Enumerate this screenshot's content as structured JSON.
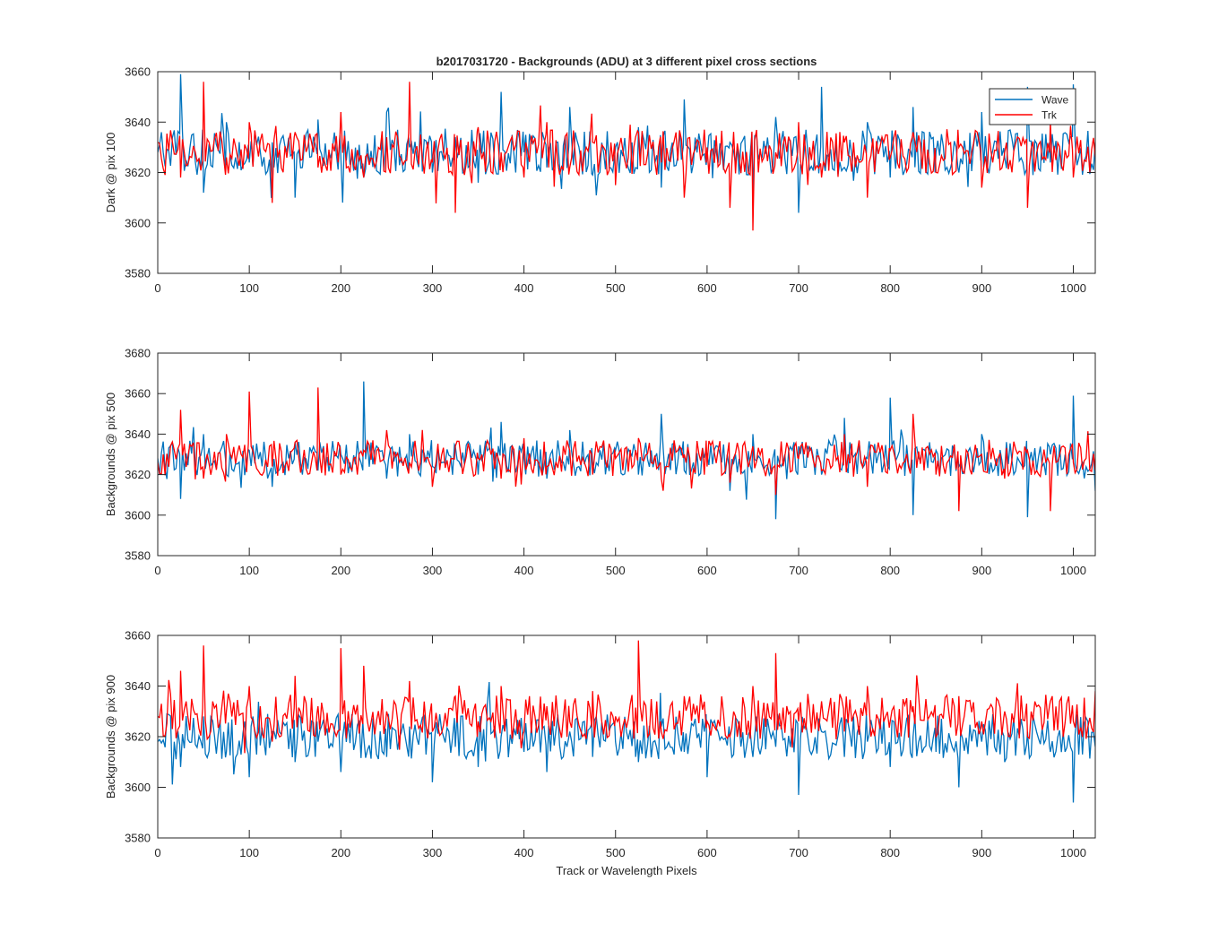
{
  "figure": {
    "title": "b2017031720 - Backgrounds (ADU) at 3 different pixel cross sections",
    "xlabel": "Track or Wavelength Pixels"
  },
  "legend": {
    "placement": "top-right",
    "entries": [
      {
        "label": "Wave",
        "color": "#0072BD"
      },
      {
        "label": "Trk",
        "color": "#FF0000"
      }
    ]
  },
  "chart_data": [
    {
      "type": "line",
      "ylabel": "Dark @ pix 100",
      "xlim": [
        0,
        1024
      ],
      "ylim": [
        3580,
        3660
      ],
      "xticks": [
        0,
        100,
        200,
        300,
        400,
        500,
        600,
        700,
        800,
        900,
        1000
      ],
      "yticks": [
        3580,
        3600,
        3620,
        3640,
        3660
      ],
      "series": [
        {
          "name": "Wave",
          "color": "#0072BD",
          "x": [
            0,
            25,
            50,
            75,
            100,
            125,
            150,
            175,
            200,
            225,
            250,
            275,
            300,
            325,
            350,
            375,
            400,
            425,
            450,
            475,
            500,
            525,
            550,
            575,
            600,
            625,
            650,
            675,
            700,
            725,
            750,
            775,
            800,
            825,
            850,
            875,
            900,
            925,
            950,
            975,
            1000,
            1024
          ],
          "y": [
            3628,
            3659,
            3612,
            3640,
            3624,
            3632,
            3610,
            3641,
            3626,
            3618,
            3644,
            3630,
            3620,
            3634,
            3616,
            3652,
            3628,
            3622,
            3646,
            3619,
            3630,
            3638,
            3614,
            3649,
            3626,
            3632,
            3612,
            3642,
            3604,
            3654,
            3622,
            3640,
            3618,
            3646,
            3628,
            3620,
            3644,
            3626,
            3654,
            3624,
            3655,
            3632
          ]
        },
        {
          "name": "Trk",
          "color": "#FF0000",
          "x": [
            0,
            25,
            50,
            75,
            100,
            125,
            150,
            175,
            200,
            225,
            250,
            275,
            300,
            325,
            350,
            375,
            400,
            425,
            450,
            475,
            500,
            525,
            550,
            575,
            600,
            625,
            650,
            675,
            700,
            725,
            750,
            775,
            800,
            825,
            850,
            875,
            900,
            925,
            950,
            975,
            1000,
            1024
          ],
          "y": [
            3632,
            3618,
            3656,
            3626,
            3640,
            3608,
            3636,
            3622,
            3644,
            3618,
            3634,
            3656,
            3624,
            3604,
            3638,
            3628,
            3618,
            3640,
            3622,
            3632,
            3615,
            3636,
            3624,
            3610,
            3630,
            3606,
            3597,
            3628,
            3640,
            3618,
            3632,
            3610,
            3626,
            3636,
            3620,
            3630,
            3614,
            3628,
            3606,
            3640,
            3618,
            3626
          ]
        }
      ]
    },
    {
      "type": "line",
      "ylabel": "Backgrounds @ pix 500",
      "xlim": [
        0,
        1024
      ],
      "ylim": [
        3580,
        3680
      ],
      "xticks": [
        0,
        100,
        200,
        300,
        400,
        500,
        600,
        700,
        800,
        900,
        1000
      ],
      "yticks": [
        3580,
        3600,
        3620,
        3640,
        3660,
        3680
      ],
      "series": [
        {
          "name": "Wave",
          "color": "#0072BD",
          "x": [
            0,
            25,
            50,
            75,
            100,
            125,
            150,
            175,
            200,
            225,
            250,
            275,
            300,
            325,
            350,
            375,
            400,
            425,
            450,
            475,
            500,
            525,
            550,
            575,
            600,
            625,
            650,
            675,
            700,
            725,
            750,
            775,
            800,
            825,
            850,
            875,
            900,
            925,
            950,
            975,
            1000,
            1024
          ],
          "y": [
            3628,
            3608,
            3640,
            3620,
            3632,
            3614,
            3636,
            3622,
            3630,
            3666,
            3618,
            3640,
            3624,
            3634,
            3620,
            3646,
            3628,
            3618,
            3642,
            3626,
            3632,
            3620,
            3650,
            3622,
            3630,
            3612,
            3640,
            3598,
            3634,
            3620,
            3648,
            3628,
            3658,
            3600,
            3632,
            3624,
            3640,
            3622,
            3599,
            3630,
            3659,
            3612
          ]
        },
        {
          "name": "Trk",
          "color": "#FF0000",
          "x": [
            0,
            25,
            50,
            75,
            100,
            125,
            150,
            175,
            200,
            225,
            250,
            275,
            300,
            325,
            350,
            375,
            400,
            425,
            450,
            475,
            500,
            525,
            550,
            575,
            600,
            625,
            650,
            675,
            700,
            725,
            750,
            775,
            800,
            825,
            850,
            875,
            900,
            925,
            950,
            975,
            1000,
            1024
          ],
          "y": [
            3626,
            3652,
            3618,
            3640,
            3661,
            3624,
            3636,
            3663,
            3620,
            3632,
            3642,
            3626,
            3614,
            3634,
            3628,
            3618,
            3638,
            3624,
            3632,
            3620,
            3628,
            3638,
            3618,
            3630,
            3624,
            3616,
            3634,
            3610,
            3628,
            3622,
            3640,
            3614,
            3632,
            3650,
            3620,
            3602,
            3630,
            3618,
            3632,
            3602,
            3626,
            3622
          ]
        }
      ]
    },
    {
      "type": "line",
      "ylabel": "Backgrounds @ pix 900",
      "xlabel": "Track or Wavelength Pixels",
      "xlim": [
        0,
        1024
      ],
      "ylim": [
        3580,
        3660
      ],
      "xticks": [
        0,
        100,
        200,
        300,
        400,
        500,
        600,
        700,
        800,
        900,
        1000
      ],
      "yticks": [
        3580,
        3600,
        3620,
        3640,
        3660
      ],
      "series": [
        {
          "name": "Wave",
          "color": "#0072BD",
          "x": [
            0,
            25,
            50,
            75,
            100,
            125,
            150,
            175,
            200,
            225,
            250,
            275,
            300,
            325,
            350,
            375,
            400,
            425,
            450,
            475,
            500,
            525,
            550,
            575,
            600,
            625,
            650,
            675,
            700,
            725,
            750,
            775,
            800,
            825,
            850,
            875,
            900,
            925,
            950,
            975,
            1000,
            1024
          ],
          "y": [
            3618,
            3608,
            3628,
            3614,
            3604,
            3622,
            3610,
            3618,
            3606,
            3620,
            3612,
            3624,
            3602,
            3616,
            3608,
            3620,
            3614,
            3606,
            3622,
            3612,
            3618,
            3610,
            3624,
            3614,
            3604,
            3620,
            3612,
            3616,
            3597,
            3622,
            3612,
            3618,
            3608,
            3620,
            3614,
            3600,
            3618,
            3610,
            3622,
            3614,
            3594,
            3616
          ]
        },
        {
          "name": "Trk",
          "color": "#FF0000",
          "x": [
            0,
            25,
            50,
            75,
            100,
            125,
            150,
            175,
            200,
            225,
            250,
            275,
            300,
            325,
            350,
            375,
            400,
            425,
            450,
            475,
            500,
            525,
            550,
            575,
            600,
            625,
            650,
            675,
            700,
            725,
            750,
            775,
            800,
            825,
            850,
            875,
            900,
            925,
            950,
            975,
            1000,
            1024
          ],
          "y": [
            3628,
            3646,
            3656,
            3630,
            3640,
            3618,
            3644,
            3632,
            3655,
            3648,
            3630,
            3642,
            3622,
            3636,
            3626,
            3640,
            3622,
            3632,
            3626,
            3638,
            3628,
            3658,
            3622,
            3636,
            3626,
            3620,
            3640,
            3653,
            3626,
            3634,
            3622,
            3640,
            3626,
            3632,
            3620,
            3636,
            3626,
            3630,
            3620,
            3634,
            3626,
            3638
          ]
        }
      ]
    }
  ]
}
